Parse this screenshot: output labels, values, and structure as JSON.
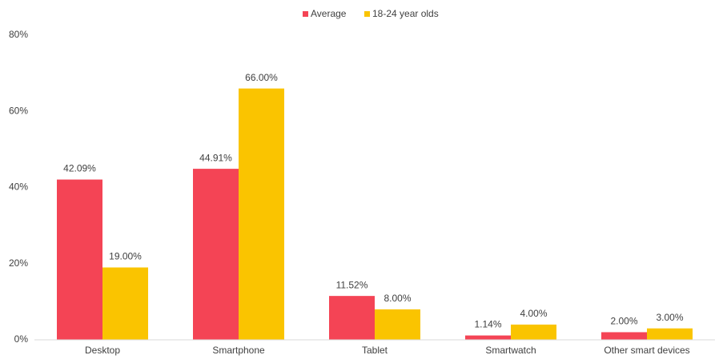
{
  "chart_data": {
    "type": "bar",
    "categories": [
      "Desktop",
      "Smartphone",
      "Tablet",
      "Smartwatch",
      "Other smart devices"
    ],
    "series": [
      {
        "name": "Average",
        "color": "#f44455",
        "values": [
          42.09,
          44.91,
          11.52,
          1.14,
          2.0
        ],
        "value_labels": [
          "42.09%",
          "44.91%",
          "11.52%",
          "1.14%",
          "2.00%"
        ]
      },
      {
        "name": "18-24 year olds",
        "color": "#fac400",
        "values": [
          19.0,
          66.0,
          8.0,
          4.0,
          3.0
        ],
        "value_labels": [
          "19.00%",
          "66.00%",
          "8.00%",
          "4.00%",
          "3.00%"
        ]
      }
    ],
    "ylim": [
      0,
      80
    ],
    "yticks": [
      {
        "value": 0,
        "label": "0%"
      },
      {
        "value": 20,
        "label": "20%"
      },
      {
        "value": 40,
        "label": "40%"
      },
      {
        "value": 60,
        "label": "60%"
      },
      {
        "value": 80,
        "label": "80%"
      }
    ],
    "grid": false,
    "legend": "top"
  }
}
